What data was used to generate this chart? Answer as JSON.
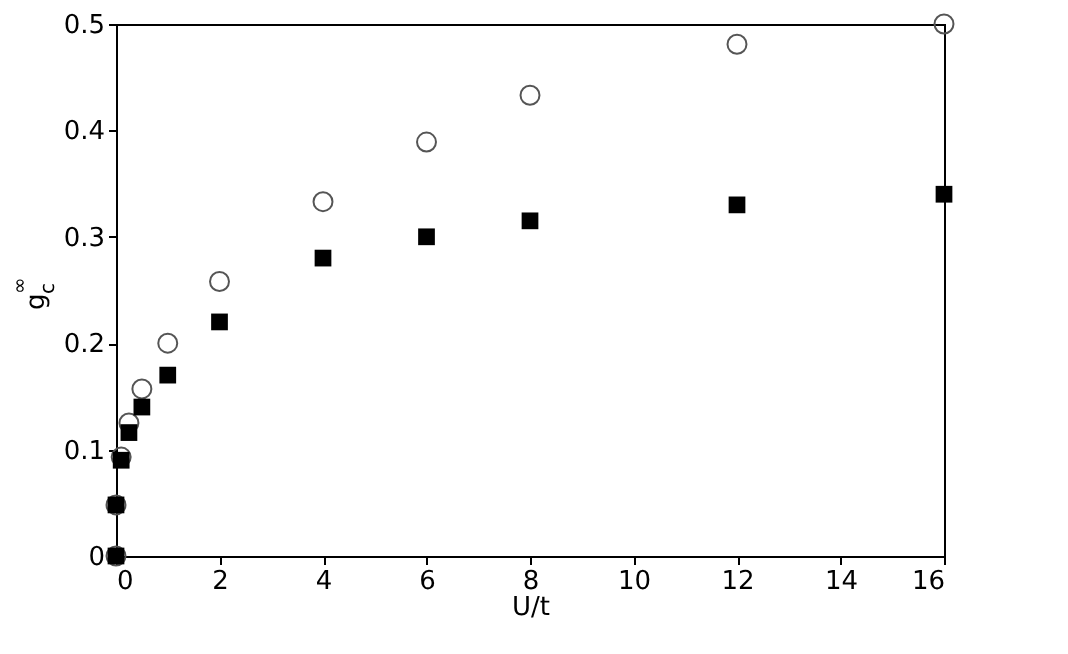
{
  "chart_data": {
    "type": "scatter",
    "xlabel": "U/t",
    "ylabel": "g$_{c}$$^{∞}$",
    "xlim": [
      0,
      16
    ],
    "ylim": [
      0,
      0.5
    ],
    "xticks": [
      0,
      2,
      4,
      6,
      8,
      10,
      12,
      14,
      16
    ],
    "yticks": [
      0,
      0.1,
      0.2,
      0.3,
      0.4,
      0.5
    ],
    "grid": false,
    "series": [
      {
        "color": "#555555",
        "marker": "circle",
        "x": [
          0,
          0,
          0.1,
          0.25,
          0.5,
          1,
          2,
          4,
          6,
          8,
          12,
          16
        ],
        "values": [
          0,
          0.048,
          0.093,
          0.125,
          0.157,
          0.2,
          0.258,
          0.333,
          0.389,
          0.433,
          0.481,
          0.5
        ]
      },
      {
        "color": "#000000",
        "marker": "square",
        "x": [
          0,
          0,
          0.1,
          0.25,
          0.5,
          1,
          2,
          4,
          6,
          8,
          12,
          16
        ],
        "values": [
          0,
          0.048,
          0.09,
          0.116,
          0.14,
          0.17,
          0.22,
          0.28,
          0.3,
          0.315,
          0.33,
          0.34
        ]
      }
    ]
  }
}
